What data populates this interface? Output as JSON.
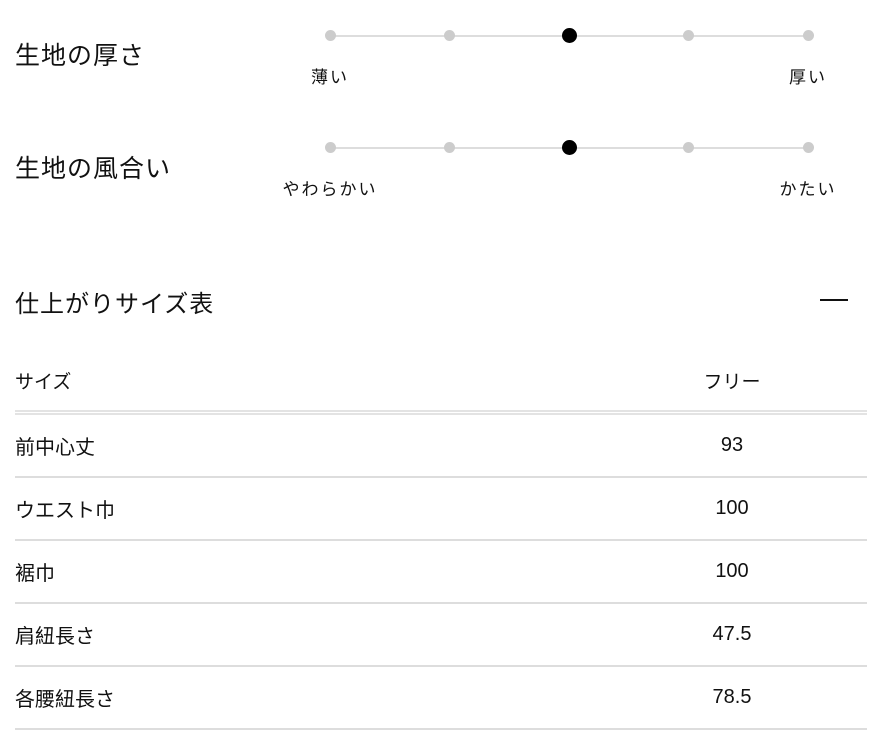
{
  "attributes": [
    {
      "title": "生地の厚さ",
      "left_label": "薄い",
      "right_label": "厚い",
      "steps": 5,
      "selected": 3
    },
    {
      "title": "生地の風合い",
      "left_label": "やわらかい",
      "right_label": "かたい",
      "steps": 5,
      "selected": 3
    }
  ],
  "size_table": {
    "title": "仕上がりサイズ表",
    "collapse_icon": "minus-icon",
    "header": {
      "label": "サイズ",
      "size": "フリー"
    },
    "rows": [
      {
        "label": "前中心丈",
        "value": "93"
      },
      {
        "label": "ウエスト巾",
        "value": "100"
      },
      {
        "label": "裾巾",
        "value": "100"
      },
      {
        "label": "肩紐長さ",
        "value": "47.5"
      },
      {
        "label": "各腰紐長さ",
        "value": "78.5"
      }
    ]
  }
}
